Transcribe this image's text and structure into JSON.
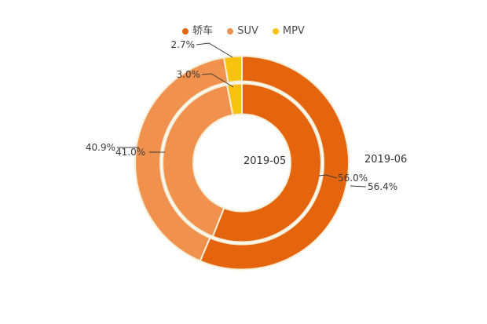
{
  "chart_data": {
    "type": "pie",
    "subtype": "nested_donut",
    "title": "",
    "categories": [
      "轿车",
      "SUV",
      "MPV"
    ],
    "category_keys": [
      "sedan",
      "suv",
      "mpv"
    ],
    "series": [
      {
        "name": "2019-05",
        "ring": "inner",
        "values": [
          56.0,
          41.0,
          3.0
        ],
        "percent_labels": [
          "56.0%",
          "41.0%",
          "3.0%"
        ]
      },
      {
        "name": "2019-06",
        "ring": "outer",
        "values": [
          56.4,
          40.9,
          2.7
        ],
        "percent_labels": [
          "56.4%",
          "40.9%",
          "2.7%"
        ]
      }
    ],
    "colors": [
      "#E5650F",
      "#F0914E",
      "#F8C211"
    ],
    "edge_color": "#F6EFD8",
    "background": "#FFFFFF",
    "start_angle": 90,
    "direction": "clockwise",
    "legend_position": "top-center",
    "grid": false
  },
  "legend": {
    "items": [
      {
        "label": "轿车",
        "color": "#E5650F"
      },
      {
        "label": "SUV",
        "color": "#F0914E"
      },
      {
        "label": "MPV",
        "color": "#F8C211"
      }
    ]
  },
  "annotations": {
    "outer_mpv": "2.7%",
    "inner_mpv": "3.0%",
    "outer_suv": "40.9%",
    "inner_suv": "41.0%",
    "inner_sedan": "56.0%",
    "outer_sedan": "56.4%",
    "inner_series_label": "2019-05",
    "outer_series_label": "2019-06"
  },
  "style": {
    "text_color": "#3A3A3A",
    "leader_line_color": "#3A3A3A"
  }
}
